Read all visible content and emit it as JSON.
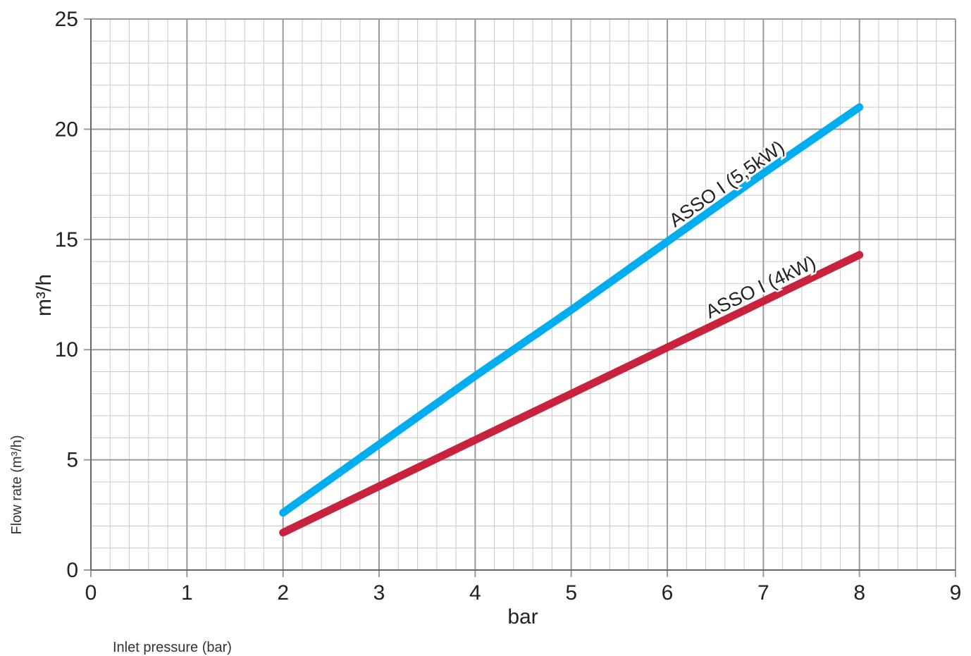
{
  "captions": {
    "x_caption": "Inlet pressure (bar)",
    "y_caption": "Flow rate (m³/h)"
  },
  "chart_data": {
    "type": "line",
    "title": "",
    "xlabel": "bar",
    "ylabel": "m³/h",
    "xlim": [
      0,
      9
    ],
    "ylim": [
      0,
      25
    ],
    "x_ticks": [
      0,
      1,
      2,
      3,
      4,
      5,
      6,
      7,
      8,
      9
    ],
    "y_ticks": [
      0,
      5,
      10,
      15,
      20,
      25
    ],
    "grid": true,
    "legend": "none",
    "series": [
      {
        "name": "ASSO I (5,5kW)",
        "color": "#00aeef",
        "x": [
          2,
          3,
          4,
          5,
          6,
          7,
          8
        ],
        "y": [
          2.6,
          5.7,
          8.8,
          11.8,
          14.9,
          18.0,
          21.0
        ]
      },
      {
        "name": "ASSO I (4kW)",
        "color": "#c8223c",
        "x": [
          2,
          3,
          4,
          5,
          6,
          7,
          8
        ],
        "y": [
          1.7,
          3.8,
          5.9,
          8.0,
          10.1,
          12.2,
          14.3
        ]
      }
    ]
  }
}
